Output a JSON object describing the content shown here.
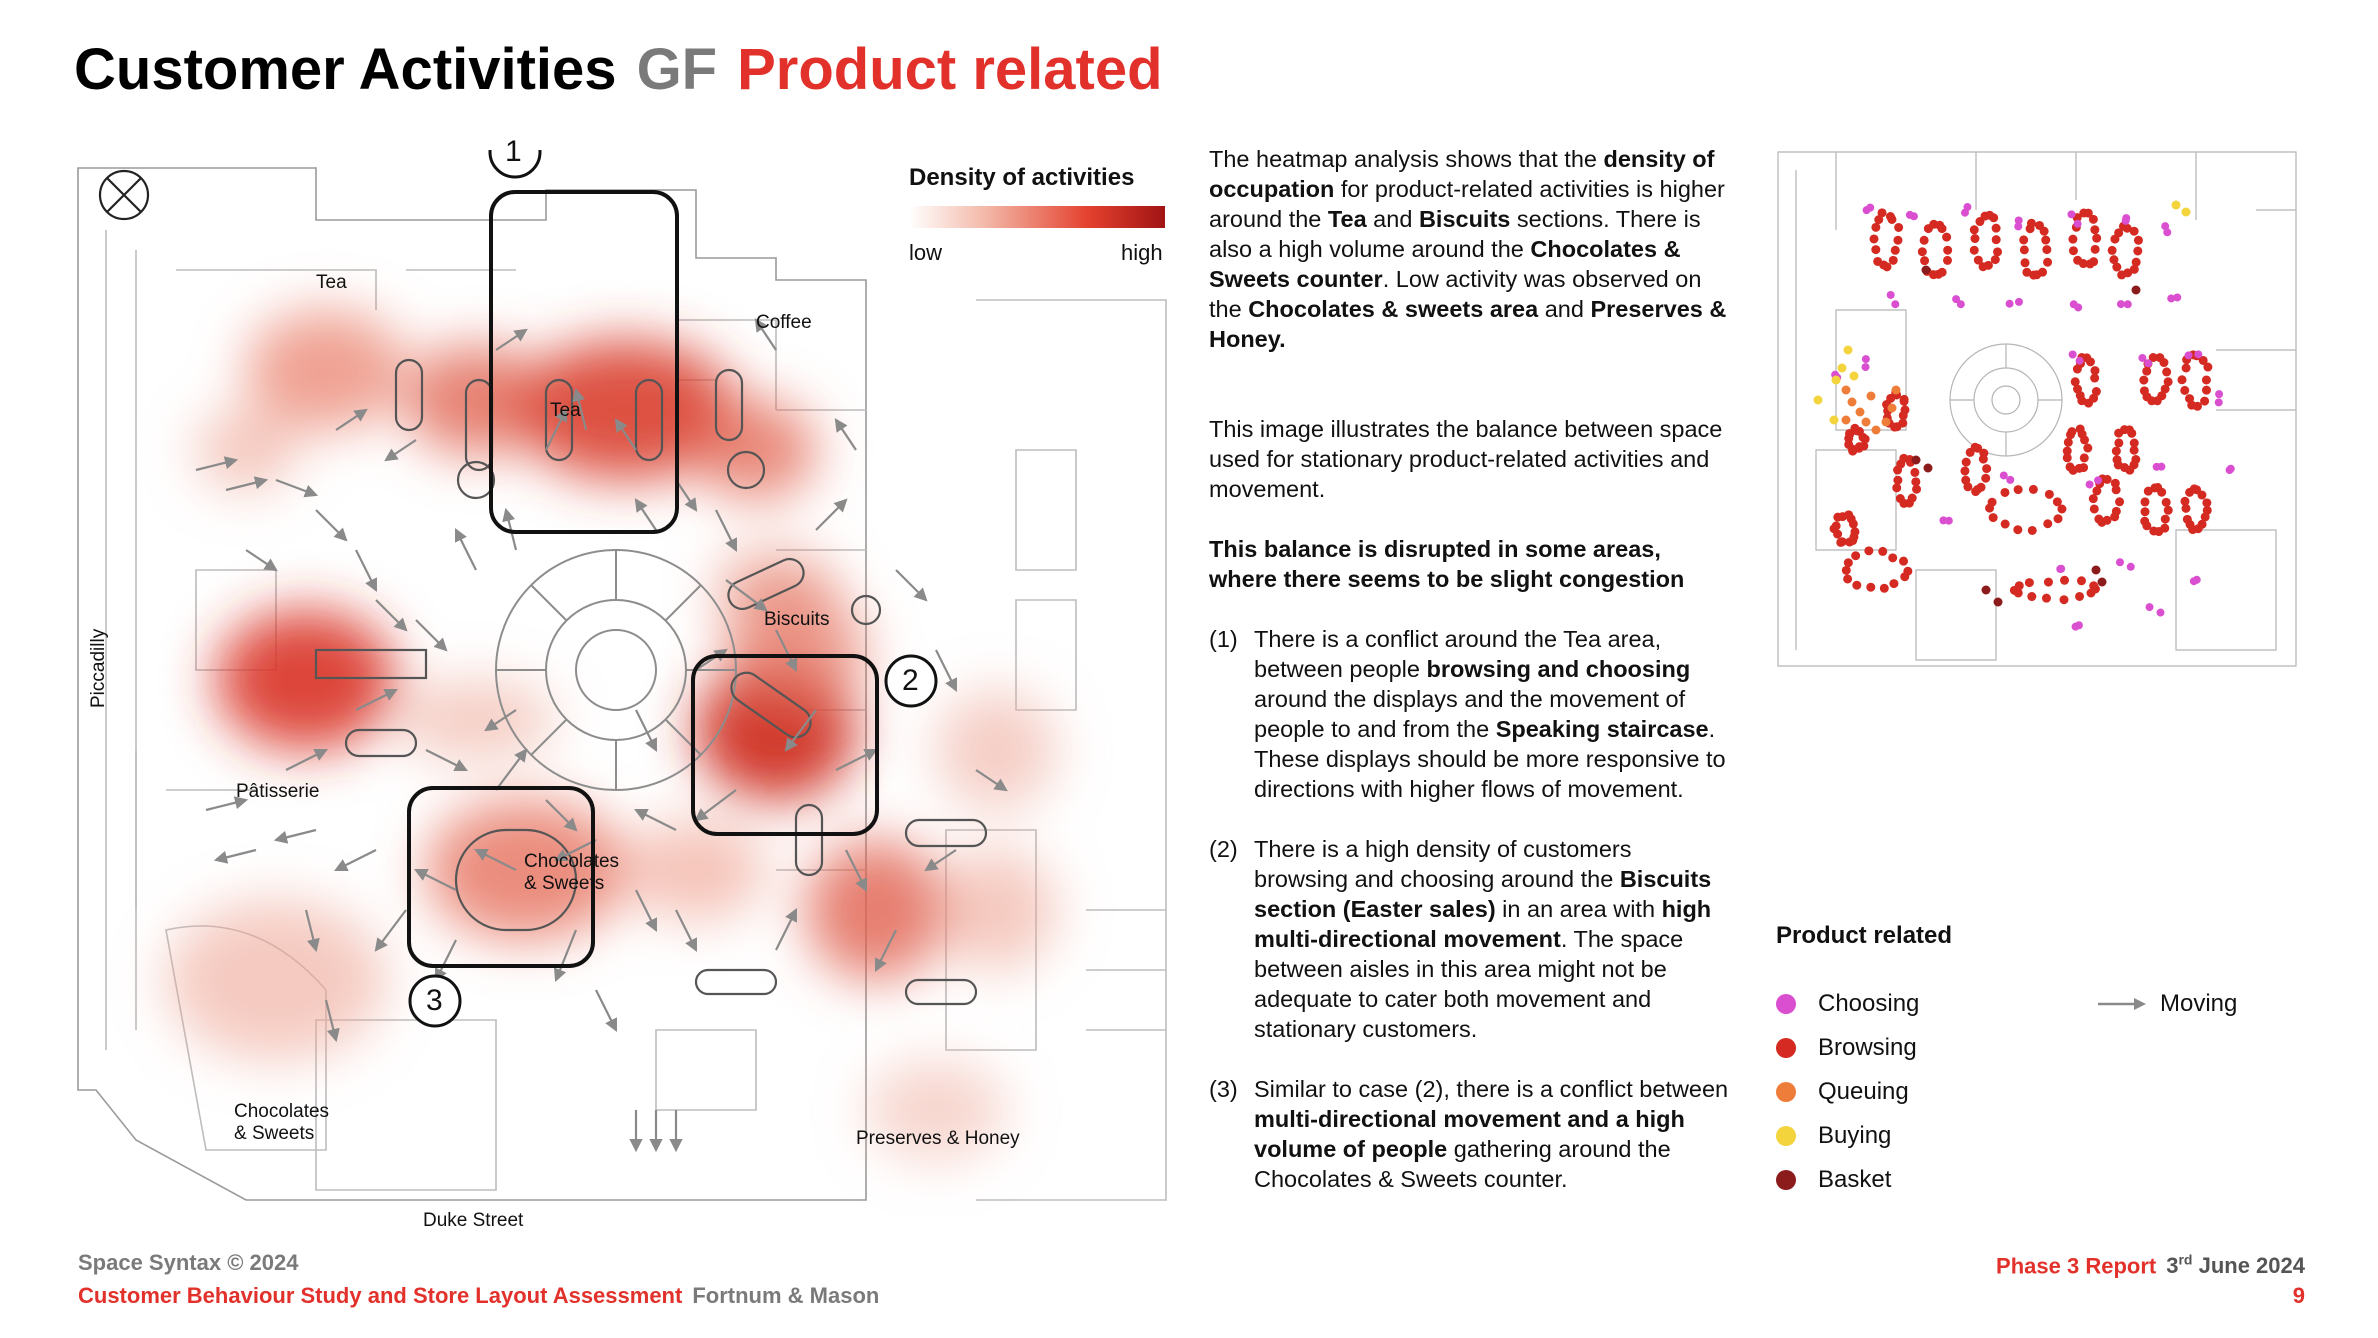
{
  "header": {
    "title_main": "Customer Activities",
    "title_floor": "GF",
    "title_topic": "Product related"
  },
  "density_legend": {
    "title": "Density of activities",
    "low": "low",
    "high": "high"
  },
  "plan_labels": {
    "tea_room": "Tea",
    "tea_center": "Tea",
    "coffee": "Coffee",
    "biscuits": "Biscuits",
    "piccadilly": "Piccadilly",
    "patisserie": "Pâtisserie",
    "chocolates_center_line1": "Chocolates",
    "chocolates_center_line2": "& Sweets",
    "chocolates_corner_line1": "Chocolates",
    "chocolates_corner_line2": "& Sweets",
    "preserves": "Preserves & Honey",
    "duke_street": "Duke Street"
  },
  "markers": [
    "1",
    "2",
    "3"
  ],
  "body_text": {
    "intro": {
      "p1": "The heatmap analysis shows that the ",
      "b1": "density of occupation",
      "p2": " for product-related activities is higher around the ",
      "b2": "Tea",
      "p3": " and ",
      "b3": "Biscuits",
      "p4": " sections. There is also a high volume around the ",
      "b4": "Chocolates & Sweets counter",
      "p5": ". Low activity was observed on the ",
      "b5": "Chocolates & sweets area",
      "p6": " and ",
      "b6": "Preserves & Honey."
    },
    "balance": "This image illustrates the balance between space used for stationary product-related activities and movement.",
    "disrupted": "This balance is disrupted in some areas, where there seems to be slight congestion",
    "item1": {
      "num": "(1)",
      "p1": "There is a conflict around the Tea area, between people ",
      "b1": "browsing and choosing",
      "p2": " around the displays and the movement of people to and from the ",
      "b2": "Speaking staircase",
      "p3": ". These displays should be more responsive to directions with higher flows of movement."
    },
    "item2": {
      "num": "(2)",
      "p1": "There is a high density of customers browsing and choosing around the ",
      "b1": "Biscuits section (Easter sales)",
      "p2": " in an area with ",
      "b2": "high multi-directional movement",
      "p3": ". The space between aisles in this area might not be adequate to cater both movement and stationary customers."
    },
    "item3": {
      "num": "(3)",
      "p1": "Similar to case (2), there is a conflict between ",
      "b1": "multi-directional movement and a high volume of people",
      "p2": " gathering around the Chocolates & Sweets counter."
    }
  },
  "activity_legend": {
    "title": "Product related",
    "items": [
      {
        "label": "Choosing",
        "color": "#d94fd0"
      },
      {
        "label": "Browsing",
        "color": "#d42a22"
      },
      {
        "label": "Queuing",
        "color": "#ee7d3a"
      },
      {
        "label": "Buying",
        "color": "#f3d43c"
      },
      {
        "label": "Basket",
        "color": "#8c1c1c"
      }
    ],
    "moving": "Moving"
  },
  "footer": {
    "copyright": "Space Syntax © 2024",
    "study": "Customer Behaviour Study and Store Layout Assessment",
    "client": "Fortnum & Mason",
    "report": "Phase 3 Report",
    "date_day": "3",
    "date_sup": "rd",
    "date_rest": "June 2024",
    "page": "9"
  },
  "colors": {
    "accent": "#e2312b",
    "grey": "#7a7a7a"
  }
}
